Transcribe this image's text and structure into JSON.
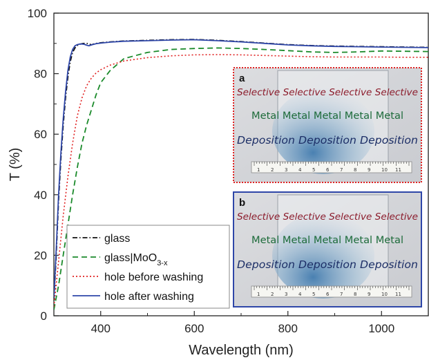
{
  "chart_data": {
    "type": "line",
    "xlabel": "Wavelength (nm)",
    "ylabel": "T (%)",
    "xlim": [
      300,
      1100
    ],
    "ylim": [
      0,
      100
    ],
    "xticks": [
      400,
      600,
      800,
      1000
    ],
    "yticks": [
      0,
      20,
      40,
      60,
      80,
      100
    ],
    "grid": false,
    "legend_position": "bottom-left",
    "series": [
      {
        "name": "glass",
        "color": "#111111",
        "dash": "dash-dot",
        "x": [
          300,
          305,
          310,
          315,
          320,
          325,
          330,
          335,
          340,
          345,
          350,
          355,
          360,
          365,
          370,
          375,
          380,
          385,
          390,
          400,
          420,
          450,
          500,
          550,
          600,
          650,
          700,
          750,
          800,
          850,
          900,
          950,
          1000,
          1050,
          1100
        ],
        "y": [
          5,
          20,
          38,
          52,
          63,
          72,
          79,
          84,
          87,
          88.5,
          89.3,
          89.7,
          89.9,
          90.0,
          90.0,
          89.9,
          89.5,
          89.8,
          90.0,
          90.2,
          90.5,
          90.8,
          91.0,
          91.2,
          91.3,
          91.0,
          90.6,
          90.1,
          89.6,
          89.3,
          89.1,
          89.0,
          88.9,
          88.8,
          88.7
        ]
      },
      {
        "name": "glass|MoO3-x",
        "color": "#1a8a2a",
        "dash": "dashed",
        "x": [
          300,
          310,
          320,
          330,
          340,
          350,
          360,
          370,
          380,
          390,
          400,
          420,
          450,
          500,
          550,
          600,
          650,
          700,
          750,
          800,
          850,
          900,
          950,
          1000,
          1050,
          1100
        ],
        "y": [
          2,
          10,
          20,
          30,
          40,
          49,
          57,
          63,
          68,
          73,
          77,
          81,
          85,
          87,
          88,
          88.3,
          88.5,
          88.3,
          88.0,
          87.6,
          87.2,
          87.0,
          87.2,
          87.5,
          87.4,
          87.3
        ]
      },
      {
        "name": "hole before washing",
        "color": "#e02020",
        "dash": "dotted",
        "x": [
          300,
          310,
          320,
          330,
          340,
          350,
          360,
          370,
          380,
          390,
          400,
          420,
          450,
          500,
          550,
          600,
          650,
          700,
          750,
          800,
          850,
          900,
          950,
          1000,
          1050,
          1100
        ],
        "y": [
          3,
          18,
          33,
          46,
          57,
          66,
          72,
          76,
          78.5,
          80.2,
          81.3,
          82.8,
          84.2,
          85.3,
          85.9,
          86.2,
          86.3,
          86.2,
          86.0,
          85.8,
          85.6,
          85.5,
          85.5,
          85.5,
          85.4,
          85.4
        ]
      },
      {
        "name": "hole after washing",
        "color": "#2e46a8",
        "dash": "solid",
        "x": [
          300,
          305,
          310,
          315,
          320,
          325,
          330,
          335,
          340,
          345,
          350,
          355,
          360,
          365,
          370,
          375,
          380,
          390,
          400,
          420,
          450,
          500,
          550,
          600,
          650,
          700,
          750,
          800,
          850,
          900,
          950,
          1000,
          1050,
          1100
        ],
        "y": [
          6,
          22,
          40,
          54,
          65,
          74,
          81,
          85.5,
          88,
          89.2,
          89.6,
          89.8,
          89.8,
          89.7,
          89.4,
          89.2,
          89.5,
          89.9,
          90.1,
          90.4,
          90.7,
          90.9,
          91.1,
          91.2,
          90.9,
          90.5,
          90.0,
          89.5,
          89.2,
          89.0,
          88.9,
          88.8,
          88.7,
          88.6
        ]
      }
    ],
    "legend": {
      "items": [
        {
          "prefix": "glass",
          "sub": "",
          "suffix": ""
        },
        {
          "prefix": "glass|MoO",
          "sub": "3-x",
          "suffix": ""
        },
        {
          "prefix": "hole before washing",
          "sub": "",
          "suffix": ""
        },
        {
          "prefix": "hole after washing",
          "sub": "",
          "suffix": ""
        }
      ]
    },
    "insets": [
      {
        "label": "a",
        "border_color": "#e02020",
        "lines": [
          {
            "text": "Selective Selective Selective Selective",
            "color": "#8b1a2a"
          },
          {
            "text": "Metal Metal Metal Metal Metal",
            "color": "#1d6b3a"
          },
          {
            "text": "Deposition Deposition Deposition",
            "color": "#1c2e66"
          }
        ]
      },
      {
        "label": "b",
        "border_color": "#2e46a8",
        "lines": [
          {
            "text": "Selective Selective Selective Selective",
            "color": "#8b1a2a"
          },
          {
            "text": "Metal Metal Metal Metal Metal",
            "color": "#1d6b3a"
          },
          {
            "text": "Deposition Deposition Deposition",
            "color": "#1c2e66"
          }
        ]
      }
    ],
    "ruler_numbers": [
      "1",
      "2",
      "3",
      "4",
      "5",
      "6",
      "7",
      "8",
      "9",
      "10",
      "11"
    ]
  }
}
